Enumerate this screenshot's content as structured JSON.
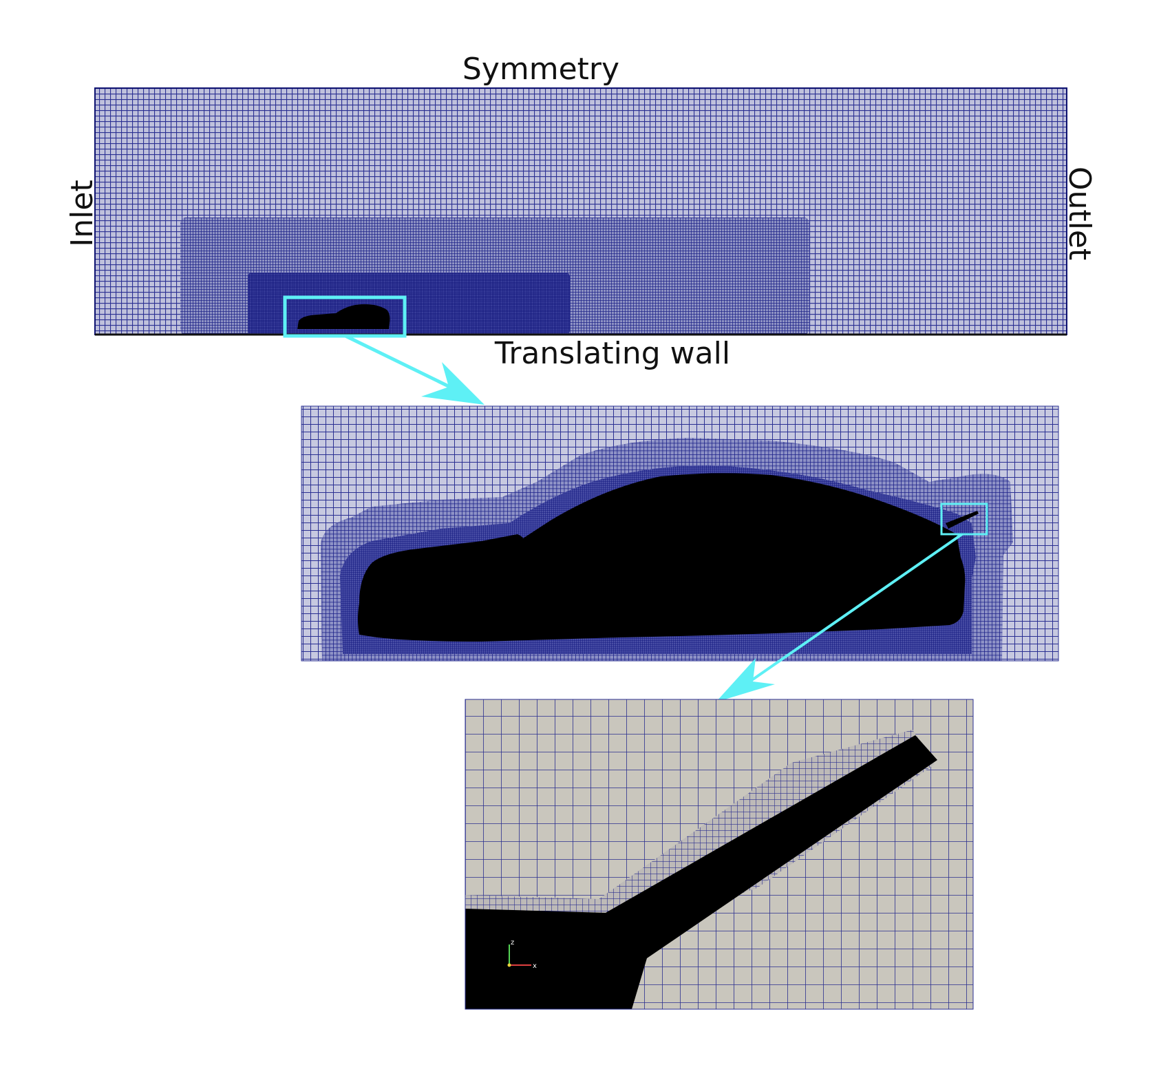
{
  "labels": {
    "top": "Symmetry",
    "left": "Inlet",
    "right": "Outlet",
    "bottom": "Translating wall"
  },
  "axis_triad": {
    "z_label": "z",
    "x_label": "x"
  },
  "colors": {
    "mesh_line": "#1a1f8c",
    "mesh_dense": "#0d1170",
    "highlight": "#5ef0f5",
    "solid": "#000000",
    "zoom_background": "#c9c6bd"
  }
}
